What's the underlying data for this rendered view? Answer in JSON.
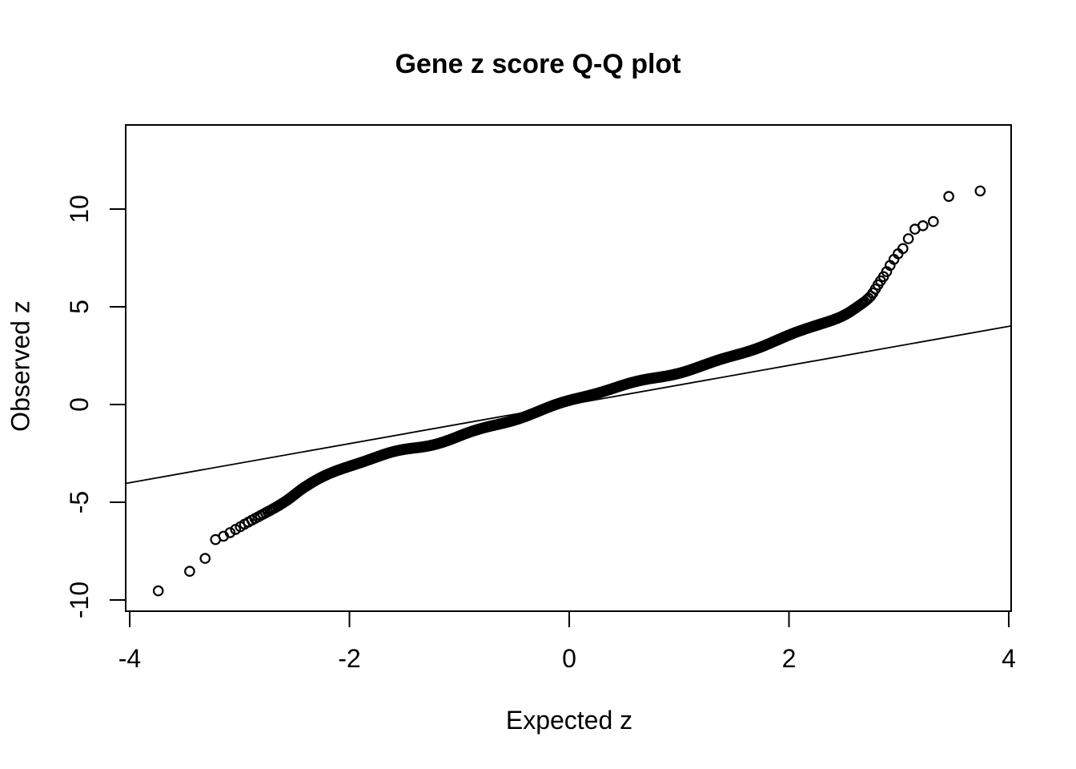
{
  "page": {
    "background": "#ffffff",
    "foreground": "#000000"
  },
  "chart_data": {
    "type": "scatter",
    "title": "Gene z score Q-Q plot",
    "xlabel": "Expected z",
    "ylabel": "Observed z",
    "x_tick_values": [
      -4,
      -2,
      0,
      2,
      4
    ],
    "x_tick_labels": [
      "-4",
      "-2",
      "0",
      "2",
      "4"
    ],
    "y_tick_values": [
      -10,
      -5,
      0,
      5,
      10
    ],
    "y_tick_labels": [
      "-10",
      "-5",
      "0",
      "5",
      "10"
    ],
    "xlim": [
      -4.04,
      4.02
    ],
    "ylim": [
      -10.6,
      14.3
    ],
    "grid": false,
    "legend": "none",
    "marker": "open-circle",
    "marker_color": "#000000",
    "reference_line": {
      "slope": 1,
      "intercept": 0,
      "color": "#000000"
    },
    "n_points": 5435,
    "x_distribution": "normal-quantiles",
    "qq_curve_anchors": {
      "expected": [
        -3.74,
        -3.56,
        -3.44,
        -3.36,
        -3.3,
        -3.25,
        -3.19,
        -3.14,
        -3.08,
        -3.0,
        -2.9,
        -2.74,
        -2.58,
        -2.41,
        -2.05,
        -1.68,
        -1.32,
        -0.9,
        -0.52,
        0.0,
        0.45,
        0.94,
        1.38,
        1.81,
        2.1,
        2.3,
        2.5,
        2.62,
        2.74,
        2.81,
        2.88,
        2.94,
        3.0,
        3.05,
        3.13,
        3.23,
        3.37,
        3.44,
        3.55,
        3.72
      ],
      "observed": [
        -9.67,
        -9.43,
        -8.48,
        -7.95,
        -7.85,
        -7.05,
        -6.84,
        -6.74,
        -6.55,
        -6.28,
        -5.92,
        -5.35,
        -4.8,
        -4.18,
        -3.28,
        -2.66,
        -2.17,
        -1.35,
        -0.72,
        0.1,
        0.85,
        1.64,
        2.34,
        3.07,
        3.62,
        4.08,
        4.58,
        5.0,
        5.53,
        6.15,
        6.76,
        7.38,
        7.87,
        8.2,
        9.06,
        9.3,
        9.59,
        10.57,
        10.85,
        10.88
      ]
    },
    "observed_texture": {
      "amp1": 0.1,
      "freq1": 3.3,
      "phase1": 0.9,
      "amp2": 0.05,
      "freq2": 8.7,
      "phase2": 2.4
    },
    "extremes": {
      "min_point": [
        -3.74,
        -9.67
      ],
      "max_point": [
        3.72,
        10.88
      ]
    }
  }
}
